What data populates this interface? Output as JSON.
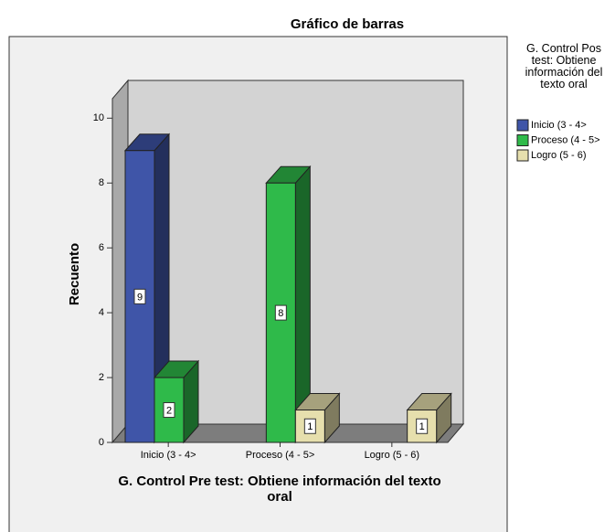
{
  "chart_data": {
    "type": "bar3d",
    "title": "Gráfico de barras",
    "x_label": "G. Control Pre test: Obtiene información del texto oral",
    "y_label": "Recuento",
    "categories": [
      "Inicio (3 - 4>",
      "Proceso (4 - 5>",
      "Logro (5 - 6)"
    ],
    "legend_title": "G. Control Pos test: Obtiene información del texto oral",
    "series": [
      {
        "name": "Inicio (3 - 4>",
        "color": "#3f55a8",
        "values": [
          9,
          null,
          null
        ]
      },
      {
        "name": "Proceso (4 - 5>",
        "color": "#2fba4a",
        "values": [
          2,
          8,
          null
        ]
      },
      {
        "name": "Logro (5 - 6)",
        "color": "#e6dfad",
        "values": [
          null,
          1,
          1
        ]
      }
    ],
    "ylim": [
      0,
      10.6
    ],
    "yticks": [
      0,
      2,
      4,
      6,
      8,
      10
    ],
    "grid": false,
    "legend": "right"
  }
}
